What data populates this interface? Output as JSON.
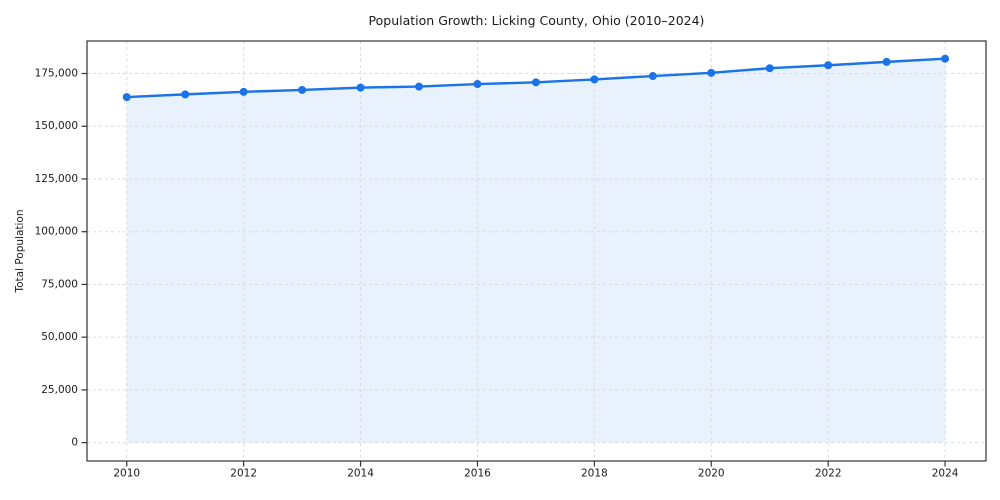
{
  "figure": {
    "background": "#ffffff"
  },
  "chart_data": {
    "type": "area",
    "title": "Population Growth: Licking County, Ohio (2010–2024)",
    "xlabel": "",
    "ylabel": "Total Population",
    "x": [
      2010,
      2011,
      2012,
      2013,
      2014,
      2015,
      2016,
      2017,
      2018,
      2019,
      2020,
      2021,
      2022,
      2023,
      2024
    ],
    "series": [
      {
        "name": "Total Population",
        "values": [
          163800,
          165100,
          166300,
          167200,
          168300,
          168800,
          170000,
          170800,
          172200,
          173800,
          175300,
          177500,
          178900,
          180500,
          182000
        ]
      }
    ],
    "xticks": [
      2010,
      2012,
      2014,
      2016,
      2018,
      2020,
      2022,
      2024
    ],
    "yticks": [
      0,
      25000,
      50000,
      75000,
      100000,
      125000,
      150000,
      175000
    ],
    "ytick_labels": [
      "0",
      "25,000",
      "50,000",
      "75,000",
      "100,000",
      "125,000",
      "150,000",
      "175,000"
    ],
    "xlim": [
      2009.32,
      2024.7
    ],
    "ylim": [
      -8700,
      190400
    ],
    "grid": true,
    "grid_style": "dashed",
    "legend": false,
    "marker": "circle",
    "colors": {
      "line": "#1a73e8",
      "fill": "#e8f1fc",
      "grid": "#dbdbdb",
      "spine": "#333333",
      "text": "#1c1c1c"
    }
  }
}
